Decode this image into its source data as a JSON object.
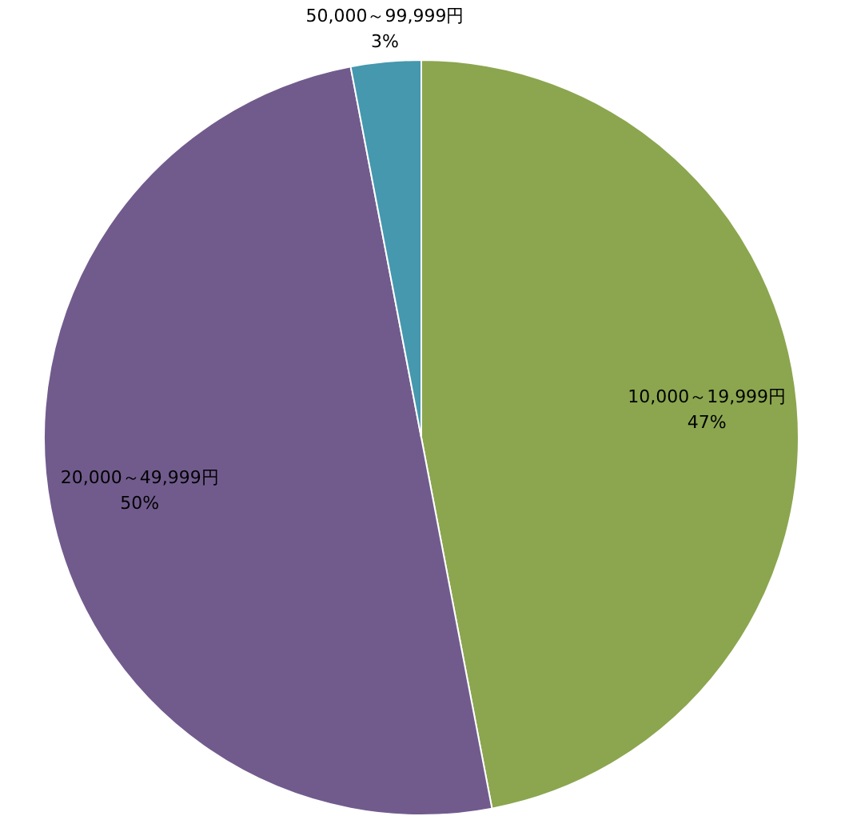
{
  "chart_data": {
    "type": "pie",
    "categories": [
      "10,000～19,999円",
      "20,000～49,999円",
      "50,000～99,999円"
    ],
    "values": [
      47,
      50,
      3
    ],
    "colors": [
      "#8ba64f",
      "#715b8d",
      "#4598ad"
    ],
    "value_labels": [
      "47%",
      "50%",
      "3%"
    ],
    "legend": false
  }
}
